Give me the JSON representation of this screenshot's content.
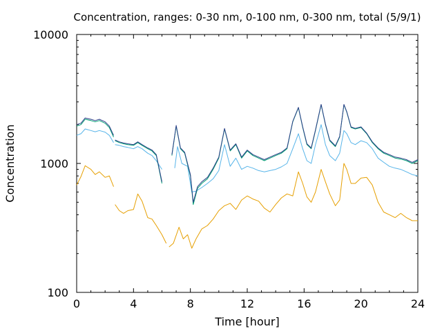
{
  "chart_data": {
    "type": "line",
    "title": "Concentration, ranges: 0-30 nm, 0-100 nm, 0-300 nm, total (5/9/1)",
    "xlabel": "Time [hour]",
    "ylabel": "Concentration",
    "xlim": [
      0,
      24
    ],
    "ylim": [
      100,
      10000
    ],
    "yscale": "log",
    "grid": false,
    "legend": "none",
    "x_ticks": [
      0,
      4,
      8,
      12,
      16,
      20,
      24
    ],
    "x_tick_labels": [
      "0",
      "4",
      "8",
      "12",
      "16",
      "20",
      "24"
    ],
    "y_ticks": [
      100,
      1000,
      10000
    ],
    "y_tick_labels": [
      "100",
      "1000",
      "10000"
    ],
    "series": [
      {
        "color": "#e69f00",
        "segments": [
          [
            [
              0.0,
              680
            ],
            [
              0.3,
              790
            ],
            [
              0.6,
              960
            ],
            [
              1.0,
              900
            ],
            [
              1.3,
              820
            ],
            [
              1.6,
              860
            ],
            [
              2.0,
              780
            ],
            [
              2.3,
              800
            ],
            [
              2.6,
              660
            ]
          ],
          [
            [
              2.7,
              480
            ],
            [
              3.0,
              430
            ],
            [
              3.3,
              410
            ],
            [
              3.6,
              430
            ],
            [
              4.0,
              440
            ],
            [
              4.3,
              580
            ],
            [
              4.6,
              510
            ],
            [
              5.0,
              380
            ],
            [
              5.3,
              370
            ],
            [
              5.6,
              330
            ],
            [
              6.0,
              280
            ],
            [
              6.3,
              240
            ]
          ],
          [
            [
              6.5,
              225
            ],
            [
              6.8,
              240
            ],
            [
              7.2,
              320
            ],
            [
              7.5,
              260
            ],
            [
              7.8,
              280
            ],
            [
              8.1,
              220
            ],
            [
              8.4,
              260
            ],
            [
              8.8,
              310
            ],
            [
              9.2,
              330
            ],
            [
              9.6,
              370
            ],
            [
              10.0,
              430
            ],
            [
              10.4,
              470
            ],
            [
              10.8,
              490
            ],
            [
              11.2,
              440
            ],
            [
              11.6,
              520
            ],
            [
              12.0,
              560
            ],
            [
              12.4,
              530
            ],
            [
              12.8,
              510
            ],
            [
              13.2,
              450
            ],
            [
              13.6,
              420
            ],
            [
              14.0,
              480
            ],
            [
              14.4,
              540
            ],
            [
              14.8,
              580
            ],
            [
              15.2,
              560
            ],
            [
              15.6,
              860
            ],
            [
              15.9,
              700
            ],
            [
              16.2,
              550
            ],
            [
              16.5,
              500
            ],
            [
              16.8,
              600
            ],
            [
              17.2,
              900
            ],
            [
              17.5,
              720
            ],
            [
              17.8,
              580
            ],
            [
              18.2,
              470
            ],
            [
              18.5,
              520
            ],
            [
              18.8,
              1000
            ],
            [
              19.0,
              900
            ],
            [
              19.3,
              700
            ],
            [
              19.6,
              700
            ],
            [
              20.0,
              770
            ],
            [
              20.4,
              780
            ],
            [
              20.8,
              680
            ],
            [
              21.2,
              500
            ],
            [
              21.6,
              420
            ],
            [
              22.0,
              400
            ],
            [
              22.4,
              380
            ],
            [
              22.8,
              410
            ],
            [
              23.2,
              380
            ],
            [
              23.6,
              360
            ],
            [
              24.0,
              360
            ]
          ]
        ]
      },
      {
        "color": "#56b4e9",
        "segments": [
          [
            [
              0.0,
              1650
            ],
            [
              0.3,
              1700
            ],
            [
              0.6,
              1850
            ],
            [
              1.0,
              1800
            ],
            [
              1.3,
              1760
            ],
            [
              1.6,
              1800
            ],
            [
              2.0,
              1750
            ],
            [
              2.3,
              1650
            ],
            [
              2.6,
              1450
            ]
          ],
          [
            [
              2.7,
              1400
            ],
            [
              3.0,
              1380
            ],
            [
              3.3,
              1350
            ],
            [
              3.6,
              1330
            ],
            [
              4.0,
              1300
            ],
            [
              4.3,
              1350
            ],
            [
              4.6,
              1300
            ],
            [
              5.0,
              1200
            ],
            [
              5.3,
              1150
            ],
            [
              5.6,
              1050
            ],
            [
              6.0,
              900
            ]
          ],
          [
            [
              6.9,
              920
            ],
            [
              7.1,
              1350
            ],
            [
              7.4,
              1000
            ],
            [
              7.8,
              950
            ],
            [
              8.1,
              600
            ],
            [
              8.4,
              610
            ],
            [
              8.8,
              650
            ],
            [
              9.2,
              700
            ],
            [
              9.6,
              760
            ],
            [
              10.0,
              880
            ],
            [
              10.4,
              1400
            ],
            [
              10.8,
              950
            ],
            [
              11.2,
              1100
            ],
            [
              11.6,
              900
            ],
            [
              12.0,
              950
            ],
            [
              12.4,
              920
            ],
            [
              12.8,
              880
            ],
            [
              13.2,
              860
            ],
            [
              13.6,
              880
            ],
            [
              14.0,
              900
            ],
            [
              14.4,
              940
            ],
            [
              14.8,
              1000
            ],
            [
              15.2,
              1300
            ],
            [
              15.6,
              1700
            ],
            [
              15.9,
              1300
            ],
            [
              16.2,
              1050
            ],
            [
              16.5,
              1000
            ],
            [
              16.8,
              1400
            ],
            [
              17.2,
              2000
            ],
            [
              17.5,
              1400
            ],
            [
              17.8,
              1150
            ],
            [
              18.2,
              1050
            ],
            [
              18.5,
              1200
            ],
            [
              18.8,
              1800
            ],
            [
              19.0,
              1700
            ],
            [
              19.3,
              1450
            ],
            [
              19.6,
              1400
            ],
            [
              20.0,
              1500
            ],
            [
              20.4,
              1450
            ],
            [
              20.8,
              1300
            ],
            [
              21.2,
              1100
            ],
            [
              21.6,
              1020
            ],
            [
              22.0,
              950
            ],
            [
              22.4,
              920
            ],
            [
              22.8,
              900
            ],
            [
              23.2,
              860
            ],
            [
              23.6,
              820
            ],
            [
              24.0,
              800
            ]
          ]
        ]
      },
      {
        "color": "#009e73",
        "segments": [
          [
            [
              0.0,
              1950
            ],
            [
              0.3,
              2000
            ],
            [
              0.6,
              2200
            ],
            [
              1.0,
              2150
            ],
            [
              1.3,
              2100
            ],
            [
              1.6,
              2150
            ],
            [
              2.0,
              2050
            ],
            [
              2.3,
              1900
            ],
            [
              2.6,
              1600
            ]
          ],
          [
            [
              2.7,
              1500
            ],
            [
              3.0,
              1450
            ],
            [
              3.3,
              1420
            ],
            [
              3.6,
              1400
            ],
            [
              4.0,
              1380
            ],
            [
              4.3,
              1450
            ],
            [
              4.6,
              1380
            ],
            [
              5.0,
              1300
            ],
            [
              5.3,
              1250
            ],
            [
              5.6,
              1150
            ],
            [
              6.0,
              700
            ]
          ],
          [
            [
              6.7,
              1150
            ],
            [
              7.0,
              1950
            ],
            [
              7.3,
              1300
            ],
            [
              7.6,
              1200
            ],
            [
              8.0,
              800
            ],
            [
              8.2,
              480
            ],
            [
              8.5,
              640
            ],
            [
              8.8,
              700
            ],
            [
              9.2,
              760
            ],
            [
              9.6,
              900
            ],
            [
              10.0,
              1100
            ],
            [
              10.4,
              1850
            ],
            [
              10.8,
              1250
            ],
            [
              11.2,
              1400
            ],
            [
              11.6,
              1100
            ],
            [
              12.0,
              1250
            ],
            [
              12.4,
              1150
            ],
            [
              12.8,
              1100
            ],
            [
              13.2,
              1050
            ],
            [
              13.6,
              1100
            ],
            [
              14.0,
              1150
            ],
            [
              14.4,
              1200
            ],
            [
              14.8,
              1300
            ],
            [
              15.2,
              2100
            ],
            [
              15.6,
              2700
            ],
            [
              15.9,
              1900
            ],
            [
              16.2,
              1400
            ],
            [
              16.5,
              1300
            ],
            [
              16.8,
              1800
            ],
            [
              17.2,
              2850
            ],
            [
              17.5,
              2000
            ],
            [
              17.8,
              1500
            ],
            [
              18.2,
              1350
            ],
            [
              18.5,
              1600
            ],
            [
              18.8,
              2850
            ],
            [
              19.0,
              2500
            ],
            [
              19.3,
              1900
            ],
            [
              19.6,
              1850
            ],
            [
              20.0,
              1900
            ],
            [
              20.4,
              1700
            ],
            [
              20.8,
              1450
            ],
            [
              21.2,
              1300
            ],
            [
              21.6,
              1200
            ],
            [
              22.0,
              1150
            ],
            [
              22.4,
              1100
            ],
            [
              22.8,
              1080
            ],
            [
              23.2,
              1050
            ],
            [
              23.6,
              1000
            ],
            [
              24.0,
              1050
            ]
          ]
        ]
      },
      {
        "color": "#2c3e88",
        "segments": [
          [
            [
              0.0,
              2000
            ],
            [
              0.3,
              2050
            ],
            [
              0.6,
              2250
            ],
            [
              1.0,
              2200
            ],
            [
              1.3,
              2150
            ],
            [
              1.6,
              2200
            ],
            [
              2.0,
              2100
            ],
            [
              2.3,
              1950
            ],
            [
              2.6,
              1650
            ]
          ],
          [
            [
              2.7,
              1520
            ],
            [
              3.0,
              1470
            ],
            [
              3.3,
              1440
            ],
            [
              3.6,
              1420
            ],
            [
              4.0,
              1400
            ],
            [
              4.3,
              1470
            ],
            [
              4.6,
              1400
            ],
            [
              5.0,
              1320
            ],
            [
              5.3,
              1270
            ],
            [
              5.6,
              1170
            ],
            [
              6.0,
              720
            ]
          ],
          [
            [
              6.7,
              1170
            ],
            [
              7.0,
              1970
            ],
            [
              7.3,
              1320
            ],
            [
              7.6,
              1220
            ],
            [
              8.0,
              820
            ],
            [
              8.2,
              500
            ],
            [
              8.5,
              660
            ],
            [
              8.8,
              720
            ],
            [
              9.2,
              780
            ],
            [
              9.6,
              920
            ],
            [
              10.0,
              1120
            ],
            [
              10.4,
              1870
            ],
            [
              10.8,
              1270
            ],
            [
              11.2,
              1420
            ],
            [
              11.6,
              1120
            ],
            [
              12.0,
              1270
            ],
            [
              12.4,
              1170
            ],
            [
              12.8,
              1120
            ],
            [
              13.2,
              1070
            ],
            [
              13.6,
              1120
            ],
            [
              14.0,
              1170
            ],
            [
              14.4,
              1220
            ],
            [
              14.8,
              1320
            ],
            [
              15.2,
              2120
            ],
            [
              15.6,
              2720
            ],
            [
              15.9,
              1920
            ],
            [
              16.2,
              1420
            ],
            [
              16.5,
              1320
            ],
            [
              16.8,
              1820
            ],
            [
              17.2,
              2870
            ],
            [
              17.5,
              2020
            ],
            [
              17.8,
              1520
            ],
            [
              18.2,
              1370
            ],
            [
              18.5,
              1620
            ],
            [
              18.8,
              2870
            ],
            [
              19.0,
              2520
            ],
            [
              19.3,
              1920
            ],
            [
              19.6,
              1870
            ],
            [
              20.0,
              1920
            ],
            [
              20.4,
              1720
            ],
            [
              20.8,
              1470
            ],
            [
              21.2,
              1320
            ],
            [
              21.6,
              1220
            ],
            [
              22.0,
              1170
            ],
            [
              22.4,
              1120
            ],
            [
              22.8,
              1100
            ],
            [
              23.2,
              1070
            ],
            [
              23.6,
              1020
            ],
            [
              24.0,
              1070
            ]
          ]
        ]
      }
    ]
  }
}
